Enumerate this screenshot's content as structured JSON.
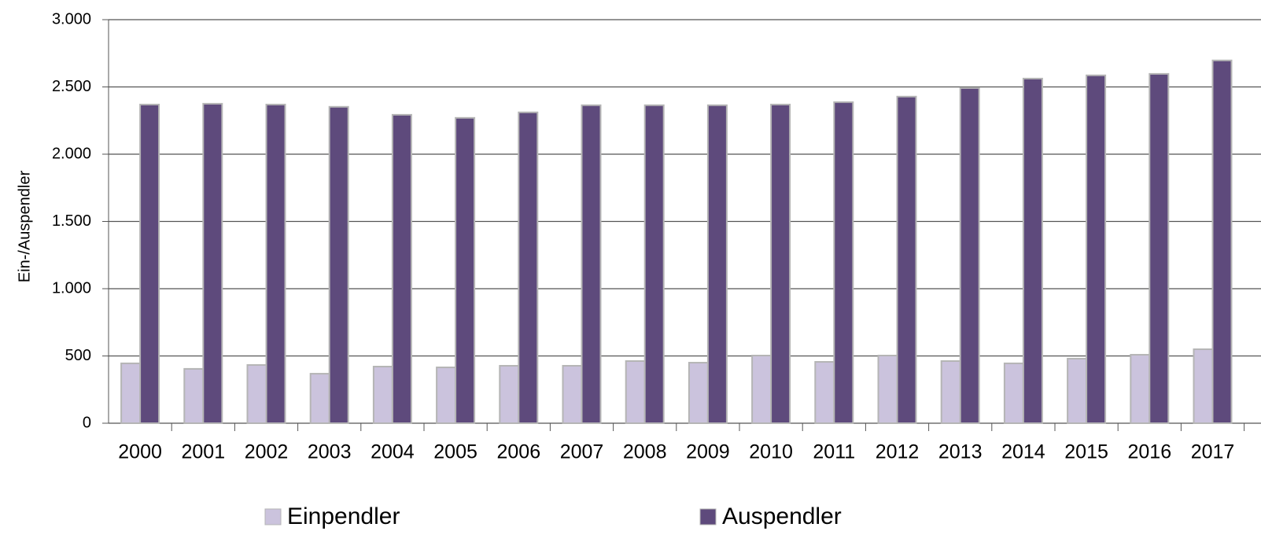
{
  "chart_data": {
    "type": "bar",
    "y_label": "Ein-/Auspendler",
    "categories": [
      "2000",
      "2001",
      "2002",
      "2003",
      "2004",
      "2005",
      "2006",
      "2007",
      "2008",
      "2009",
      "2010",
      "2011",
      "2012",
      "2013",
      "2014",
      "2015",
      "2016",
      "2017"
    ],
    "series": [
      {
        "name": "Einpendler",
        "color": "#cbc3dd",
        "values": [
          445,
          404,
          433,
          368,
          421,
          415,
          427,
          427,
          462,
          450,
          503,
          456,
          503,
          462,
          445,
          480,
          509,
          550
        ]
      },
      {
        "name": "Auspendler",
        "color": "#5e4a7c",
        "values": [
          2369,
          2375,
          2369,
          2352,
          2293,
          2270,
          2311,
          2364,
          2364,
          2364,
          2369,
          2387,
          2428,
          2492,
          2562,
          2586,
          2597,
          2697
        ]
      }
    ],
    "ylim": [
      0,
      3000
    ],
    "yticks": [
      0,
      500,
      {
        "value": 1000,
        "label": "1.000"
      },
      {
        "value": 1500,
        "label": "1.500"
      },
      {
        "value": 2000,
        "label": "2.000"
      },
      {
        "value": 2500,
        "label": "2.500"
      },
      {
        "value": 3000,
        "label": "3.000"
      }
    ],
    "grid": true
  }
}
